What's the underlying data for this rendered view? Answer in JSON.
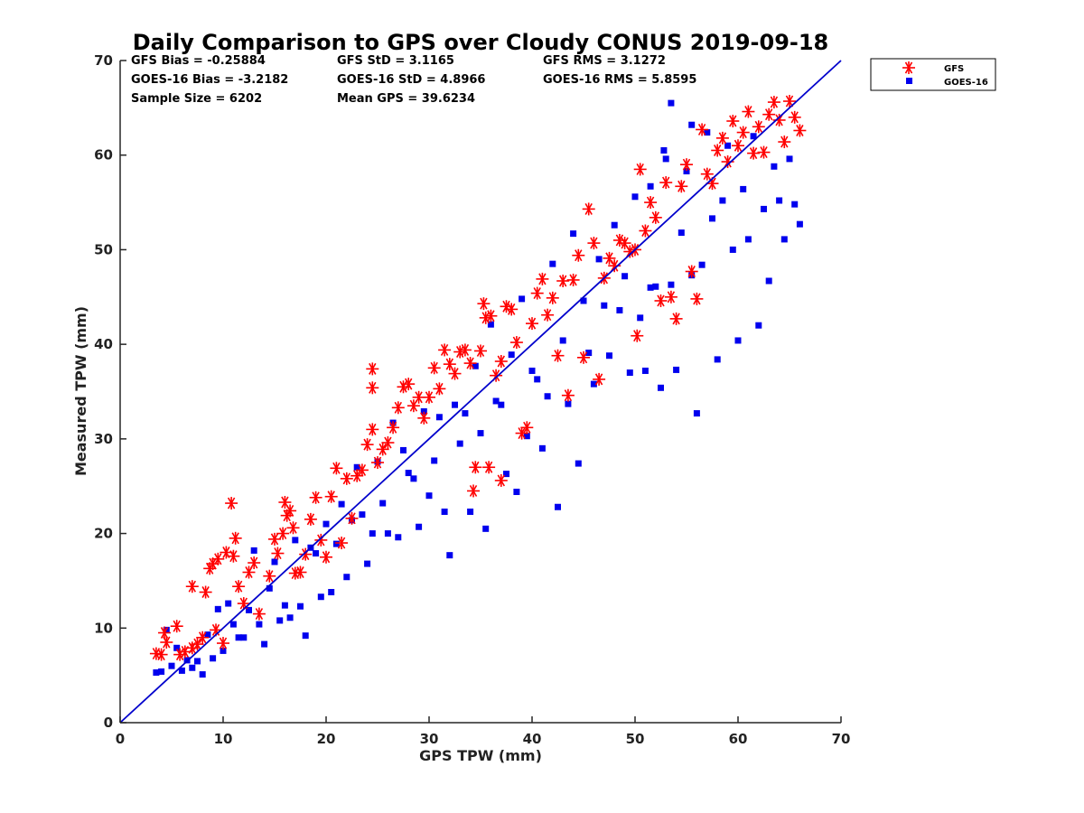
{
  "chart_data": {
    "type": "scatter",
    "title": "Daily Comparison to GPS over Cloudy CONUS 2019-09-18",
    "xlabel": "GPS TPW (mm)",
    "ylabel": "Measured TPW (mm)",
    "xlim": [
      0,
      70
    ],
    "ylim": [
      0,
      70
    ],
    "xticks": [
      "0",
      "10",
      "20",
      "30",
      "40",
      "50",
      "60",
      "70"
    ],
    "yticks": [
      "0",
      "10",
      "20",
      "30",
      "40",
      "50",
      "60",
      "70"
    ],
    "grid": false,
    "legend_position": "outside-top-right",
    "reference_line": {
      "x": [
        0,
        70
      ],
      "y": [
        0,
        70
      ],
      "color": "#0000cc"
    },
    "stats": {
      "gfs_bias": "GFS Bias = -0.25884",
      "gfs_std": "GFS StD = 3.1165",
      "gfs_rms": "GFS RMS = 3.1272",
      "goes_bias": "GOES-16 Bias = -3.2182",
      "goes_std": "GOES-16 StD = 4.8966",
      "goes_rms": "GOES-16 RMS = 5.8595",
      "sample_size": "Sample Size = 6202",
      "mean_gps": "Mean GPS = 39.6234"
    },
    "series": [
      {
        "name": "GFS",
        "marker": "asterisk",
        "color": "#ff0000",
        "points": [
          [
            3.5,
            7.3
          ],
          [
            4.0,
            7.2
          ],
          [
            4.3,
            9.5
          ],
          [
            4.5,
            8.5
          ],
          [
            5.5,
            10.2
          ],
          [
            5.8,
            7.2
          ],
          [
            6.3,
            7.5
          ],
          [
            7.0,
            14.4
          ],
          [
            7.0,
            7.9
          ],
          [
            7.5,
            8.3
          ],
          [
            8.0,
            9.0
          ],
          [
            8.3,
            13.8
          ],
          [
            8.7,
            16.3
          ],
          [
            9.0,
            16.8
          ],
          [
            9.3,
            9.8
          ],
          [
            9.5,
            17.3
          ],
          [
            10.0,
            8.4
          ],
          [
            10.3,
            18.0
          ],
          [
            10.8,
            23.2
          ],
          [
            11.0,
            17.6
          ],
          [
            11.2,
            19.5
          ],
          [
            11.5,
            14.4
          ],
          [
            12.0,
            12.6
          ],
          [
            12.5,
            15.9
          ],
          [
            13.0,
            16.9
          ],
          [
            13.5,
            11.5
          ],
          [
            14.5,
            15.5
          ],
          [
            15.0,
            19.4
          ],
          [
            15.3,
            17.9
          ],
          [
            15.8,
            20.0
          ],
          [
            16.0,
            23.3
          ],
          [
            16.2,
            21.9
          ],
          [
            16.5,
            22.4
          ],
          [
            16.8,
            20.6
          ],
          [
            17.0,
            15.8
          ],
          [
            17.5,
            15.9
          ],
          [
            18.0,
            17.8
          ],
          [
            18.5,
            21.5
          ],
          [
            19.0,
            23.8
          ],
          [
            19.5,
            19.3
          ],
          [
            20.0,
            17.5
          ],
          [
            20.5,
            23.9
          ],
          [
            21.0,
            26.9
          ],
          [
            21.5,
            19.0
          ],
          [
            22.0,
            25.8
          ],
          [
            22.5,
            21.6
          ],
          [
            23.0,
            26.1
          ],
          [
            23.5,
            26.7
          ],
          [
            24.0,
            29.4
          ],
          [
            24.5,
            31.0
          ],
          [
            24.5,
            35.4
          ],
          [
            24.5,
            37.4
          ],
          [
            25.0,
            27.5
          ],
          [
            25.5,
            28.9
          ],
          [
            26.0,
            29.6
          ],
          [
            26.5,
            31.2
          ],
          [
            27.0,
            33.3
          ],
          [
            27.5,
            35.5
          ],
          [
            28.0,
            35.8
          ],
          [
            28.5,
            33.5
          ],
          [
            29.0,
            34.4
          ],
          [
            29.5,
            32.2
          ],
          [
            30.0,
            34.4
          ],
          [
            30.5,
            37.5
          ],
          [
            31.0,
            35.3
          ],
          [
            31.5,
            39.4
          ],
          [
            32.0,
            37.9
          ],
          [
            32.5,
            36.9
          ],
          [
            33.0,
            39.2
          ],
          [
            33.5,
            39.4
          ],
          [
            34.0,
            38.0
          ],
          [
            34.3,
            24.5
          ],
          [
            34.5,
            27.0
          ],
          [
            35.0,
            39.3
          ],
          [
            35.3,
            44.3
          ],
          [
            35.5,
            42.8
          ],
          [
            35.8,
            27.0
          ],
          [
            36.0,
            43.0
          ],
          [
            36.5,
            36.7
          ],
          [
            37.0,
            25.6
          ],
          [
            37.0,
            38.2
          ],
          [
            37.5,
            44.0
          ],
          [
            38.0,
            43.7
          ],
          [
            38.5,
            40.2
          ],
          [
            39.0,
            30.6
          ],
          [
            39.5,
            31.2
          ],
          [
            40.0,
            42.2
          ],
          [
            40.5,
            45.4
          ],
          [
            41.0,
            46.9
          ],
          [
            41.5,
            43.1
          ],
          [
            42.0,
            44.9
          ],
          [
            42.5,
            38.8
          ],
          [
            43.0,
            46.7
          ],
          [
            43.5,
            34.6
          ],
          [
            44.0,
            46.8
          ],
          [
            44.5,
            49.4
          ],
          [
            45.0,
            38.6
          ],
          [
            45.5,
            54.3
          ],
          [
            46.0,
            50.7
          ],
          [
            46.5,
            36.3
          ],
          [
            47.0,
            47.0
          ],
          [
            47.5,
            49.1
          ],
          [
            48.0,
            48.3
          ],
          [
            48.5,
            51.0
          ],
          [
            49.0,
            50.7
          ],
          [
            49.5,
            49.8
          ],
          [
            50.0,
            50.0
          ],
          [
            50.2,
            40.9
          ],
          [
            50.5,
            58.5
          ],
          [
            51.0,
            52.0
          ],
          [
            51.5,
            55.0
          ],
          [
            52.0,
            53.4
          ],
          [
            52.5,
            44.6
          ],
          [
            53.0,
            57.1
          ],
          [
            53.5,
            45.0
          ],
          [
            54.0,
            42.7
          ],
          [
            54.5,
            56.7
          ],
          [
            55.0,
            59.0
          ],
          [
            55.5,
            47.7
          ],
          [
            56.0,
            44.8
          ],
          [
            56.5,
            62.7
          ],
          [
            57.0,
            58.0
          ],
          [
            57.5,
            57.0
          ],
          [
            58.0,
            60.5
          ],
          [
            58.5,
            61.8
          ],
          [
            59.0,
            59.3
          ],
          [
            59.5,
            63.6
          ],
          [
            60.0,
            61.0
          ],
          [
            60.5,
            62.4
          ],
          [
            61.0,
            64.6
          ],
          [
            61.5,
            60.2
          ],
          [
            62.0,
            63.0
          ],
          [
            62.5,
            60.3
          ],
          [
            63.0,
            64.3
          ],
          [
            63.5,
            65.6
          ],
          [
            64.0,
            63.7
          ],
          [
            64.5,
            61.4
          ],
          [
            65.0,
            65.7
          ],
          [
            65.5,
            64.0
          ],
          [
            66.0,
            62.6
          ]
        ]
      },
      {
        "name": "GOES-16",
        "marker": "square",
        "color": "#0000ee",
        "points": [
          [
            3.5,
            5.3
          ],
          [
            4.0,
            5.4
          ],
          [
            4.5,
            9.8
          ],
          [
            5.0,
            6.0
          ],
          [
            5.5,
            7.9
          ],
          [
            6.0,
            5.5
          ],
          [
            6.5,
            6.6
          ],
          [
            7.0,
            5.8
          ],
          [
            7.5,
            6.5
          ],
          [
            8.0,
            5.1
          ],
          [
            8.5,
            9.3
          ],
          [
            9.0,
            6.8
          ],
          [
            9.5,
            12.0
          ],
          [
            10.0,
            7.6
          ],
          [
            10.5,
            12.6
          ],
          [
            11.0,
            10.4
          ],
          [
            11.5,
            9.0
          ],
          [
            12.0,
            9.0
          ],
          [
            12.5,
            11.9
          ],
          [
            13.0,
            18.2
          ],
          [
            13.5,
            10.4
          ],
          [
            14.0,
            8.3
          ],
          [
            14.5,
            14.2
          ],
          [
            15.0,
            17.0
          ],
          [
            15.5,
            10.8
          ],
          [
            16.0,
            12.4
          ],
          [
            16.5,
            11.1
          ],
          [
            17.0,
            19.3
          ],
          [
            17.5,
            12.3
          ],
          [
            18.0,
            9.2
          ],
          [
            18.5,
            18.5
          ],
          [
            19.0,
            17.9
          ],
          [
            19.5,
            13.3
          ],
          [
            20.0,
            21.0
          ],
          [
            20.5,
            13.8
          ],
          [
            21.0,
            18.9
          ],
          [
            21.5,
            23.1
          ],
          [
            22.0,
            15.4
          ],
          [
            22.5,
            21.4
          ],
          [
            23.0,
            27.0
          ],
          [
            23.5,
            22.0
          ],
          [
            24.0,
            16.8
          ],
          [
            24.5,
            20.0
          ],
          [
            25.0,
            27.6
          ],
          [
            25.5,
            23.2
          ],
          [
            26.0,
            20.0
          ],
          [
            26.5,
            31.7
          ],
          [
            27.0,
            19.6
          ],
          [
            27.5,
            28.8
          ],
          [
            28.0,
            26.4
          ],
          [
            28.5,
            25.8
          ],
          [
            29.0,
            20.7
          ],
          [
            29.5,
            32.9
          ],
          [
            30.0,
            24.0
          ],
          [
            30.5,
            27.7
          ],
          [
            31.0,
            32.3
          ],
          [
            31.5,
            22.3
          ],
          [
            32.0,
            17.7
          ],
          [
            32.5,
            33.6
          ],
          [
            33.0,
            29.5
          ],
          [
            33.5,
            32.7
          ],
          [
            34.0,
            22.3
          ],
          [
            34.5,
            37.7
          ],
          [
            35.0,
            30.6
          ],
          [
            35.5,
            20.5
          ],
          [
            36.0,
            42.1
          ],
          [
            36.5,
            34.0
          ],
          [
            37.0,
            33.6
          ],
          [
            37.5,
            26.3
          ],
          [
            38.0,
            38.9
          ],
          [
            38.5,
            24.4
          ],
          [
            39.0,
            44.8
          ],
          [
            39.5,
            30.3
          ],
          [
            40.0,
            37.2
          ],
          [
            40.5,
            36.3
          ],
          [
            41.0,
            29.0
          ],
          [
            41.5,
            34.5
          ],
          [
            42.0,
            48.5
          ],
          [
            42.5,
            22.8
          ],
          [
            43.0,
            40.4
          ],
          [
            43.5,
            33.7
          ],
          [
            44.0,
            51.7
          ],
          [
            44.5,
            27.4
          ],
          [
            45.0,
            44.6
          ],
          [
            45.5,
            39.1
          ],
          [
            46.0,
            35.8
          ],
          [
            46.5,
            49.0
          ],
          [
            47.0,
            44.1
          ],
          [
            47.5,
            38.8
          ],
          [
            48.0,
            52.6
          ],
          [
            48.5,
            43.6
          ],
          [
            49.0,
            47.2
          ],
          [
            49.5,
            37.0
          ],
          [
            50.0,
            55.6
          ],
          [
            50.5,
            42.8
          ],
          [
            51.0,
            37.2
          ],
          [
            51.5,
            56.7
          ],
          [
            52.0,
            46.1
          ],
          [
            52.5,
            35.4
          ],
          [
            53.0,
            59.6
          ],
          [
            53.5,
            46.3
          ],
          [
            54.0,
            37.3
          ],
          [
            54.5,
            51.8
          ],
          [
            55.0,
            58.3
          ],
          [
            55.5,
            47.3
          ],
          [
            56.0,
            32.7
          ],
          [
            56.5,
            48.4
          ],
          [
            57.0,
            62.4
          ],
          [
            57.5,
            53.3
          ],
          [
            58.0,
            38.4
          ],
          [
            58.5,
            55.2
          ],
          [
            59.0,
            61.0
          ],
          [
            59.5,
            50.0
          ],
          [
            60.0,
            40.4
          ],
          [
            60.5,
            56.4
          ],
          [
            61.0,
            51.1
          ],
          [
            61.5,
            62.0
          ],
          [
            62.0,
            42.0
          ],
          [
            62.5,
            54.3
          ],
          [
            63.0,
            46.7
          ],
          [
            63.5,
            58.8
          ],
          [
            64.0,
            55.2
          ],
          [
            64.5,
            51.1
          ],
          [
            65.0,
            59.6
          ],
          [
            65.5,
            54.8
          ],
          [
            66.0,
            52.7
          ],
          [
            53.5,
            65.5
          ],
          [
            52.8,
            60.5
          ],
          [
            55.5,
            63.2
          ],
          [
            51.5,
            46.0
          ]
        ]
      }
    ]
  }
}
